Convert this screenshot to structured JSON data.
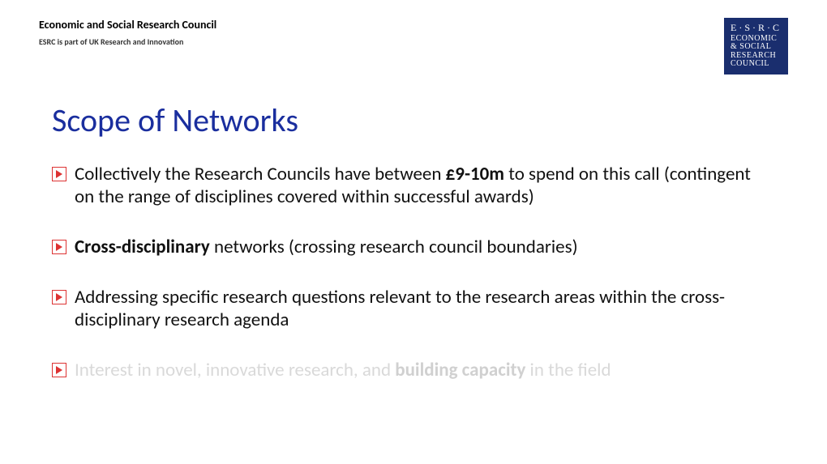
{
  "header": {
    "org": "Economic and Social Research Council",
    "sub": "ESRC is part of UK Research and Innovation"
  },
  "logo": {
    "top": "E·S·R·C",
    "l1": "ECONOMIC",
    "l2": "& SOCIAL",
    "l3": "RESEARCH",
    "l4": "COUNCIL",
    "bg": "#1a2e6e"
  },
  "title": "Scope of Networks",
  "title_color": "#1a2e9e",
  "marker_border": "#d33",
  "marker_fill": "#d33",
  "bullets": [
    {
      "html": "Collectively the Research Councils have between <b>£9-10m</b> to spend on this call (contingent on the range of disciplines covered within successful awards)",
      "faded": false
    },
    {
      "html": "<b>Cross-disciplinary</b> networks (crossing research council boundaries)",
      "faded": false
    },
    {
      "html": "Addressing specific research questions relevant to the research areas within the cross-disciplinary research agenda",
      "faded": false
    },
    {
      "html": "Interest in novel, innovative research, and <b>building capacity</b> in the field",
      "faded": true
    }
  ]
}
